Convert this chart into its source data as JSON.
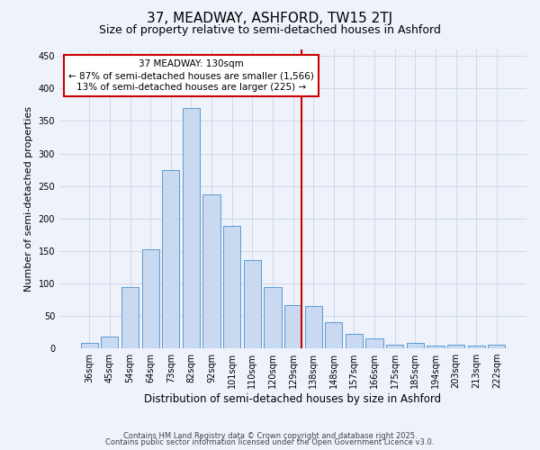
{
  "title": "37, MEADWAY, ASHFORD, TW15 2TJ",
  "subtitle": "Size of property relative to semi-detached houses in Ashford",
  "xlabel": "Distribution of semi-detached houses by size in Ashford",
  "ylabel": "Number of semi-detached properties",
  "categories": [
    "36sqm",
    "45sqm",
    "54sqm",
    "64sqm",
    "73sqm",
    "82sqm",
    "92sqm",
    "101sqm",
    "110sqm",
    "120sqm",
    "129sqm",
    "138sqm",
    "148sqm",
    "157sqm",
    "166sqm",
    "175sqm",
    "185sqm",
    "194sqm",
    "203sqm",
    "213sqm",
    "222sqm"
  ],
  "values": [
    8,
    18,
    95,
    152,
    275,
    370,
    237,
    188,
    136,
    95,
    66,
    65,
    40,
    22,
    16,
    5,
    9,
    4,
    5,
    4,
    5
  ],
  "bar_color": "#c9d9f0",
  "bar_edge_color": "#5b9bd5",
  "vline_index": 10,
  "annotation_line1": "37 MEADWAY: 130sqm",
  "annotation_line2": "← 87% of semi-detached houses are smaller (1,566)",
  "annotation_line3": "13% of semi-detached houses are larger (225) →",
  "annotation_box_color": "#ffffff",
  "annotation_box_edge_color": "#cc0000",
  "vline_color": "#cc0000",
  "ylim": [
    0,
    460
  ],
  "yticks": [
    0,
    50,
    100,
    150,
    200,
    250,
    300,
    350,
    400,
    450
  ],
  "grid_color": "#d0d8e8",
  "background_color": "#eef2fa",
  "footer1": "Contains HM Land Registry data © Crown copyright and database right 2025.",
  "footer2": "Contains public sector information licensed under the Open Government Licence v3.0.",
  "title_fontsize": 11,
  "subtitle_fontsize": 9,
  "xlabel_fontsize": 8.5,
  "ylabel_fontsize": 8,
  "tick_fontsize": 7,
  "annotation_fontsize": 7.5,
  "footer_fontsize": 6
}
